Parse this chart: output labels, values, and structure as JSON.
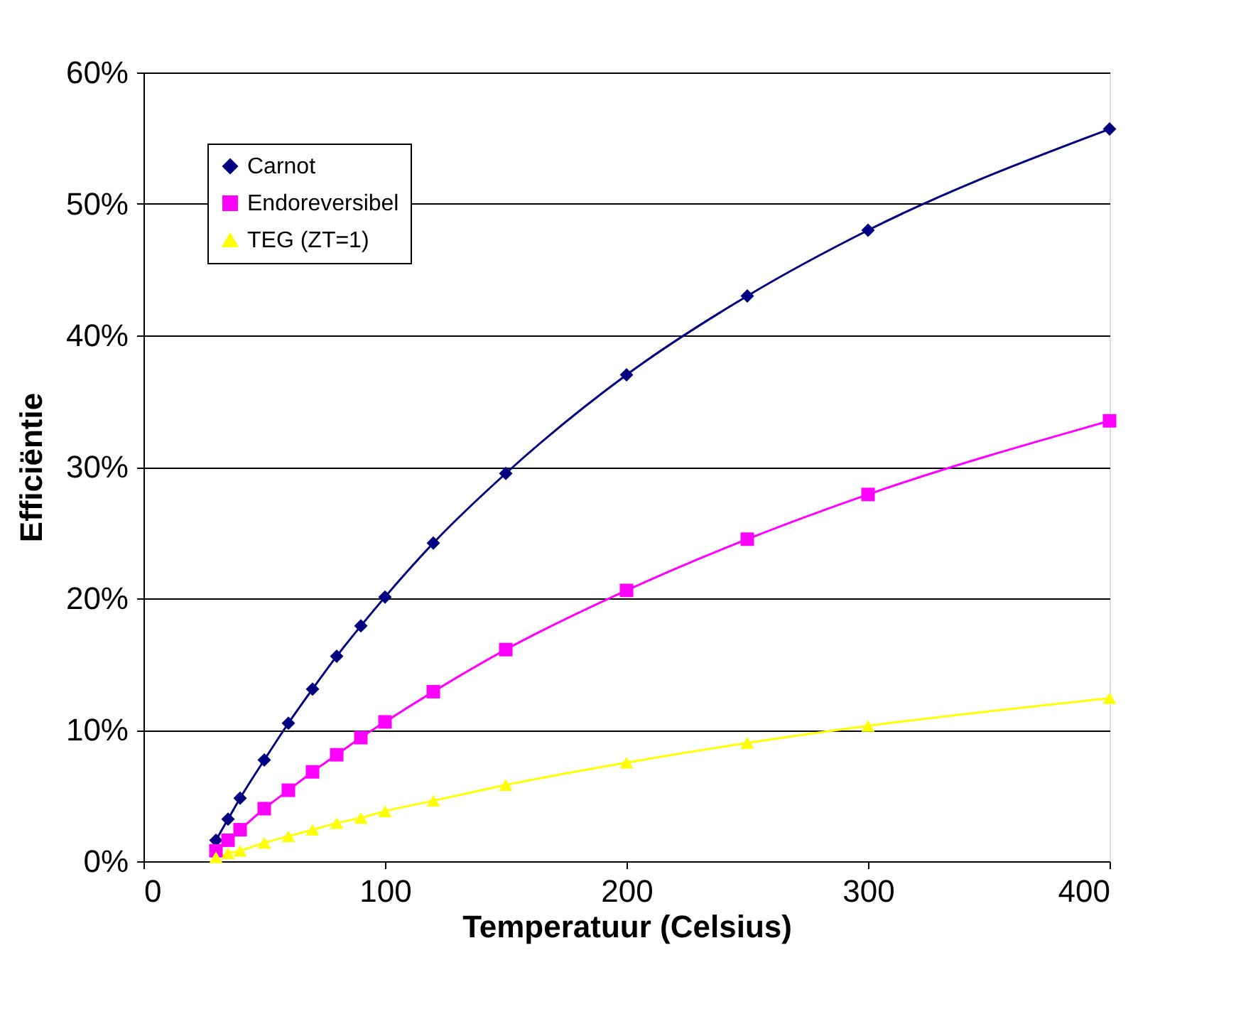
{
  "chart_data": {
    "type": "line",
    "xlabel": "Temperatuur (Celsius)",
    "ylabel": "Efficiëntie",
    "x": [
      30,
      35,
      40,
      50,
      60,
      70,
      80,
      90,
      100,
      120,
      150,
      200,
      250,
      300,
      400
    ],
    "series": [
      {
        "name": "Carnot",
        "color": "#000080",
        "marker": "diamond",
        "values": [
          1.6,
          3.2,
          4.8,
          7.7,
          10.5,
          13.1,
          15.6,
          17.9,
          20.1,
          24.2,
          29.5,
          37.0,
          43.0,
          48.0,
          55.7
        ]
      },
      {
        "name": "Endoreversibel",
        "color": "#ff00ff",
        "marker": "square",
        "values": [
          0.8,
          1.6,
          2.4,
          4.0,
          5.4,
          6.8,
          8.1,
          9.4,
          10.6,
          12.9,
          16.1,
          20.6,
          24.5,
          27.9,
          33.5
        ]
      },
      {
        "name": "TEG (ZT=1)",
        "color": "#ffff00",
        "marker": "triangle",
        "values": [
          0.3,
          0.6,
          0.8,
          1.4,
          1.9,
          2.4,
          2.9,
          3.3,
          3.8,
          4.6,
          5.8,
          7.5,
          9.0,
          10.3,
          12.4
        ]
      }
    ],
    "xlim": [
      0,
      400
    ],
    "xticks": [
      0,
      100,
      200,
      300,
      400
    ],
    "ylim": [
      0,
      60
    ],
    "yticks": [
      {
        "value": 0,
        "label": "0%"
      },
      {
        "value": 10,
        "label": "10%"
      },
      {
        "value": 20,
        "label": "20%"
      },
      {
        "value": 30,
        "label": "30%"
      },
      {
        "value": 40,
        "label": "40%"
      },
      {
        "value": 50,
        "label": "50%"
      },
      {
        "value": 60,
        "label": "60%"
      }
    ],
    "grid": "y",
    "legend": "top left",
    "line_style": "solid"
  }
}
